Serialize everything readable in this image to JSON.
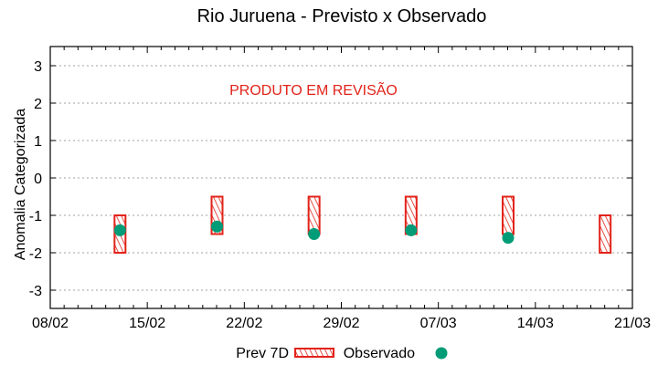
{
  "chart_data": {
    "type": "bar",
    "title": "Rio Juruena - Previsto x Observado",
    "xlabel": "",
    "ylabel": "Anomalia Categorizada",
    "ylim": [
      -3.5,
      3.5
    ],
    "yticks": [
      3,
      2,
      1,
      0,
      -1,
      -2,
      -3
    ],
    "yticklabels": [
      "3",
      "2",
      "1",
      "0",
      "-1",
      "-2",
      "-3"
    ],
    "xticklabels": [
      "08/02",
      "15/02",
      "22/02",
      "29/02",
      "07/03",
      "14/03",
      "21/03"
    ],
    "grid": "horizontal dotted",
    "legend_position": "bottom",
    "annotation": "PRODUTO EM REVISÃO",
    "series": [
      {
        "name": "Prev 7D",
        "kind": "floating-bar",
        "color": "#e2231a",
        "points": [
          {
            "x": "13/02",
            "low": -2.0,
            "high": -1.0
          },
          {
            "x": "20/02",
            "low": -1.5,
            "high": -0.5
          },
          {
            "x": "27/02",
            "low": -1.5,
            "high": -0.5
          },
          {
            "x": "05/03",
            "low": -1.5,
            "high": -0.5
          },
          {
            "x": "12/03",
            "low": -1.5,
            "high": -0.5
          },
          {
            "x": "19/03",
            "low": -2.0,
            "high": -1.0
          }
        ]
      },
      {
        "name": "Observado",
        "kind": "point",
        "color": "#009b77",
        "points": [
          {
            "x": "13/02",
            "y": -1.4
          },
          {
            "x": "20/02",
            "y": -1.3
          },
          {
            "x": "27/02",
            "y": -1.5
          },
          {
            "x": "05/03",
            "y": -1.4
          },
          {
            "x": "12/03",
            "y": -1.6
          }
        ]
      }
    ]
  },
  "legend": {
    "items": [
      {
        "label": "Prev 7D"
      },
      {
        "label": "Observado"
      }
    ]
  },
  "colors": {
    "bar": "#e2231a",
    "dot": "#009b77",
    "annotation": "#e2231a",
    "grid": "#a0a0a0"
  }
}
